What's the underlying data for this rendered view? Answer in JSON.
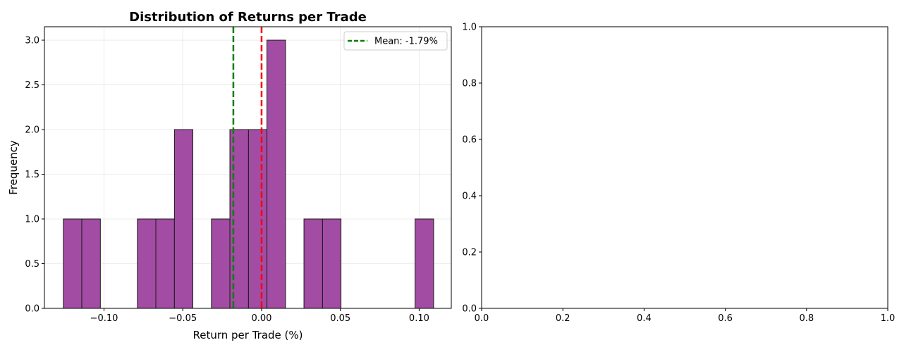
{
  "chart_data": [
    {
      "type": "bar",
      "subtype": "histogram",
      "title": "Distribution of Returns per Trade",
      "xlabel": "Return per Trade (%)",
      "ylabel": "Frequency",
      "xlim": [
        -0.1378,
        0.1204
      ],
      "ylim": [
        0,
        3.15
      ],
      "xticks": [
        -0.1,
        -0.05,
        0.0,
        0.05,
        0.1
      ],
      "xtick_labels": [
        "−0.10",
        "−0.05",
        "0.00",
        "0.05",
        "0.10"
      ],
      "yticks": [
        0.0,
        0.5,
        1.0,
        1.5,
        2.0,
        2.5,
        3.0
      ],
      "ytick_labels": [
        "0.0",
        "0.5",
        "1.0",
        "1.5",
        "2.0",
        "2.5",
        "3.0"
      ],
      "grid": true,
      "bar_color": "#a24ca3",
      "edge_color": "#1a1a1a",
      "bin_edges": [
        -0.1258,
        -0.1141,
        -0.1023,
        -0.0906,
        -0.0788,
        -0.0671,
        -0.0553,
        -0.0436,
        -0.0318,
        -0.0201,
        -0.0083,
        0.0034,
        0.0152,
        0.0269,
        0.0387,
        0.0504,
        0.0622,
        0.0739,
        0.0857,
        0.0974,
        0.1092
      ],
      "counts": [
        1,
        1,
        0,
        0,
        1,
        1,
        2,
        0,
        1,
        2,
        2,
        3,
        0,
        1,
        1,
        0,
        0,
        0,
        0,
        1
      ],
      "lines": [
        {
          "x": -0.0179,
          "color": "#008000",
          "style": "dashed",
          "label": "Mean: -1.79%"
        },
        {
          "x": 0.0,
          "color": "#ff0000",
          "style": "dashed",
          "label": ""
        }
      ],
      "legend": {
        "placement": "upper right",
        "entries": [
          "Mean: -1.79%"
        ]
      }
    },
    {
      "type": "empty",
      "title": "",
      "xlim": [
        0,
        1
      ],
      "ylim": [
        0,
        1
      ],
      "xticks": [
        0.0,
        0.2,
        0.4,
        0.6,
        0.8,
        1.0
      ],
      "xtick_labels": [
        "0.0",
        "0.2",
        "0.4",
        "0.6",
        "0.8",
        "1.0"
      ],
      "yticks": [
        0.0,
        0.2,
        0.4,
        0.6,
        0.8,
        1.0
      ],
      "ytick_labels": [
        "0.0",
        "0.2",
        "0.4",
        "0.6",
        "0.8",
        "1.0"
      ],
      "grid": false
    }
  ]
}
